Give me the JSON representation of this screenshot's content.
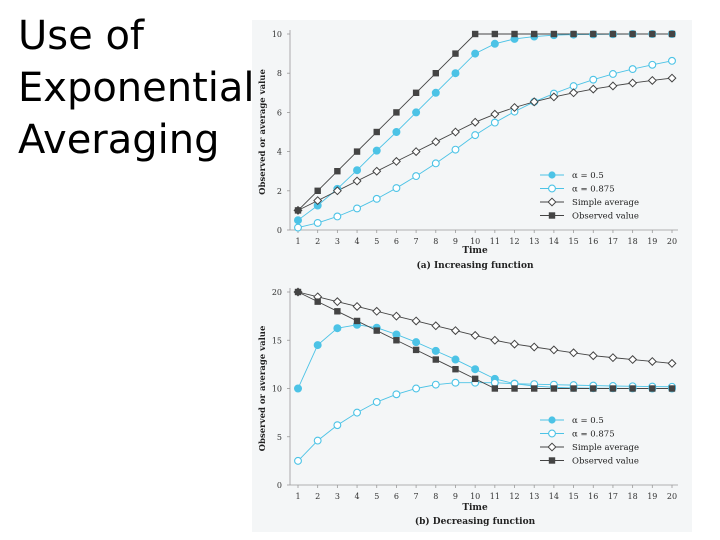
{
  "slide": {
    "title_lines": [
      "Use of",
      "Exponential",
      "Averaging"
    ]
  },
  "colors": {
    "alpha_05": "#4cc3e6",
    "alpha_0875": "#4cc3e6",
    "simple_avg": "#444444",
    "observed": "#444444"
  },
  "chart_data": [
    {
      "type": "line",
      "title": "(a) Increasing function",
      "xlabel": "Time",
      "ylabel": "Observed or average value",
      "xlim": [
        1,
        20
      ],
      "ylim": [
        0,
        10
      ],
      "yticks": [
        0,
        2,
        4,
        6,
        8,
        10
      ],
      "x": [
        1,
        2,
        3,
        4,
        5,
        6,
        7,
        8,
        9,
        10,
        11,
        12,
        13,
        14,
        15,
        16,
        17,
        18,
        19,
        20
      ],
      "legend_position": "lower-right",
      "series": [
        {
          "name": "α = 0.5",
          "marker": "filled-circle",
          "color": "#4cc3e6",
          "values": [
            0.5,
            1.25,
            2.1,
            3.05,
            4.05,
            5.0,
            6.0,
            7.0,
            8.0,
            9.0,
            9.5,
            9.75,
            9.87,
            9.94,
            9.97,
            9.98,
            9.99,
            10,
            10,
            10
          ]
        },
        {
          "name": "α = 0.875",
          "marker": "open-circle",
          "color": "#4cc3e6",
          "values": [
            0.125,
            0.36,
            0.69,
            1.1,
            1.59,
            2.14,
            2.75,
            3.4,
            4.1,
            4.84,
            5.48,
            6.04,
            6.54,
            6.96,
            7.34,
            7.67,
            7.96,
            8.21,
            8.43,
            8.63
          ]
        },
        {
          "name": "Simple average",
          "marker": "open-diamond",
          "color": "#444444",
          "values": [
            1.0,
            1.5,
            2.0,
            2.5,
            3.0,
            3.5,
            4.0,
            4.5,
            5.0,
            5.5,
            5.91,
            6.25,
            6.54,
            6.79,
            7.0,
            7.19,
            7.35,
            7.5,
            7.63,
            7.75
          ]
        },
        {
          "name": "Observed value",
          "marker": "filled-square",
          "color": "#444444",
          "values": [
            1,
            2,
            3,
            4,
            5,
            6,
            7,
            8,
            9,
            10,
            10,
            10,
            10,
            10,
            10,
            10,
            10,
            10,
            10,
            10
          ]
        }
      ]
    },
    {
      "type": "line",
      "title": "(b) Decreasing function",
      "xlabel": "Time",
      "ylabel": "Observed or average value",
      "xlim": [
        1,
        20
      ],
      "ylim": [
        0,
        20
      ],
      "yticks": [
        0,
        5,
        10,
        15,
        20
      ],
      "x": [
        1,
        2,
        3,
        4,
        5,
        6,
        7,
        8,
        9,
        10,
        11,
        12,
        13,
        14,
        15,
        16,
        17,
        18,
        19,
        20
      ],
      "legend_position": "lower-right",
      "series": [
        {
          "name": "α = 0.5",
          "marker": "filled-circle",
          "color": "#4cc3e6",
          "values": [
            10,
            14.5,
            16.25,
            16.6,
            16.3,
            15.6,
            14.8,
            13.9,
            13.0,
            12.0,
            11.0,
            10.5,
            10.25,
            10.12,
            10.06,
            10.03,
            10.02,
            10.01,
            10,
            10
          ]
        },
        {
          "name": "α = 0.875",
          "marker": "open-circle",
          "color": "#4cc3e6",
          "values": [
            2.5,
            4.6,
            6.2,
            7.5,
            8.6,
            9.4,
            10.0,
            10.4,
            10.6,
            10.6,
            10.6,
            10.5,
            10.45,
            10.4,
            10.35,
            10.3,
            10.26,
            10.23,
            10.2,
            10.18
          ]
        },
        {
          "name": "Simple average",
          "marker": "open-diamond",
          "color": "#444444",
          "values": [
            20,
            19.5,
            19.0,
            18.5,
            18.0,
            17.5,
            17.0,
            16.5,
            16.0,
            15.5,
            15.0,
            14.6,
            14.3,
            14.0,
            13.7,
            13.4,
            13.2,
            13.0,
            12.8,
            12.6
          ]
        },
        {
          "name": "Observed value",
          "marker": "filled-square",
          "color": "#444444",
          "values": [
            20,
            19,
            18,
            17,
            16,
            15,
            14,
            13,
            12,
            11,
            10,
            10,
            10,
            10,
            10,
            10,
            10,
            10,
            10,
            10
          ]
        }
      ]
    }
  ]
}
